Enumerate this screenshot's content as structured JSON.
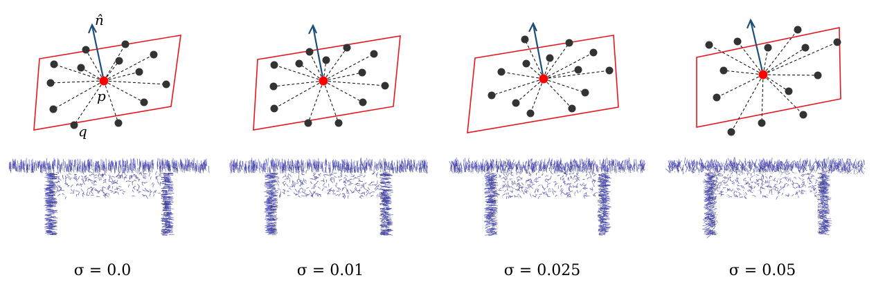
{
  "labels": {
    "normal": "n̂",
    "center_point": "p",
    "neighbor_point": "q"
  },
  "colors": {
    "plane": "#e8141c",
    "normal_arrow": "#1e4f7a",
    "neighbor": "#333333",
    "center": "#ff0000",
    "normals_field": "#3a3ab4",
    "points_field": "#222222"
  },
  "panels": [
    {
      "caption": "σ = 0.0",
      "noise": 0.0
    },
    {
      "caption": "σ = 0.01",
      "noise": 0.01
    },
    {
      "caption": "σ = 0.025",
      "noise": 0.025
    },
    {
      "caption": "σ = 0.05",
      "noise": 0.05
    }
  ]
}
